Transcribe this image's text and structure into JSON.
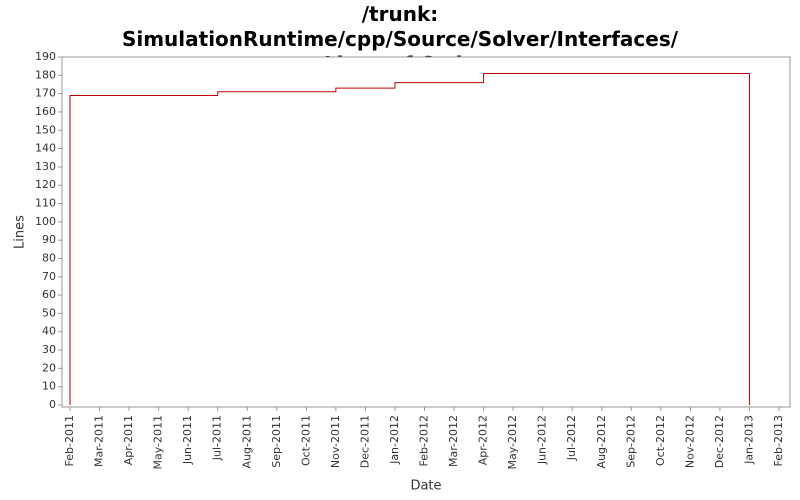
{
  "chart_data": {
    "type": "step-line",
    "title": "/trunk: SimulationRuntime/cpp/Source/Solver/Interfaces/ Lines of Code",
    "x_label": "Date",
    "y_label": "Lines",
    "x": [
      "2011-02",
      "2011-02",
      "2011-07",
      "2011-11",
      "2012-01",
      "2012-04",
      "2013-01",
      "2013-01"
    ],
    "series": [
      {
        "name": "Lines",
        "color": "#c00000",
        "values": [
          0,
          169,
          171,
          173,
          176,
          181,
          181,
          0
        ]
      }
    ],
    "xlim": [
      "2011-02",
      "2013-02"
    ],
    "xticks": [
      {
        "value": "2011-02",
        "label": "Feb-2011"
      },
      {
        "value": "2011-03",
        "label": "Mar-2011"
      },
      {
        "value": "2011-04",
        "label": "Apr-2011"
      },
      {
        "value": "2011-05",
        "label": "May-2011"
      },
      {
        "value": "2011-06",
        "label": "Jun-2011"
      },
      {
        "value": "2011-07",
        "label": "Jul-2011"
      },
      {
        "value": "2011-08",
        "label": "Aug-2011"
      },
      {
        "value": "2011-09",
        "label": "Sep-2011"
      },
      {
        "value": "2011-10",
        "label": "Oct-2011"
      },
      {
        "value": "2011-11",
        "label": "Nov-2011"
      },
      {
        "value": "2011-12",
        "label": "Dec-2011"
      },
      {
        "value": "2012-01",
        "label": "Jan-2012"
      },
      {
        "value": "2012-02",
        "label": "Feb-2012"
      },
      {
        "value": "2012-03",
        "label": "Mar-2012"
      },
      {
        "value": "2012-04",
        "label": "Apr-2012"
      },
      {
        "value": "2012-05",
        "label": "May-2012"
      },
      {
        "value": "2012-06",
        "label": "Jun-2012"
      },
      {
        "value": "2012-07",
        "label": "Jul-2012"
      },
      {
        "value": "2012-08",
        "label": "Aug-2012"
      },
      {
        "value": "2012-09",
        "label": "Sep-2012"
      },
      {
        "value": "2012-10",
        "label": "Oct-2012"
      },
      {
        "value": "2012-11",
        "label": "Nov-2012"
      },
      {
        "value": "2012-12",
        "label": "Dec-2012"
      },
      {
        "value": "2013-01",
        "label": "Jan-2013"
      },
      {
        "value": "2013-02",
        "label": "Feb-2013"
      }
    ],
    "ylim": [
      0,
      190
    ],
    "yticks": [
      0,
      10,
      20,
      30,
      40,
      50,
      60,
      70,
      80,
      90,
      100,
      110,
      120,
      130,
      140,
      150,
      160,
      170,
      180,
      190
    ],
    "grid": false
  }
}
